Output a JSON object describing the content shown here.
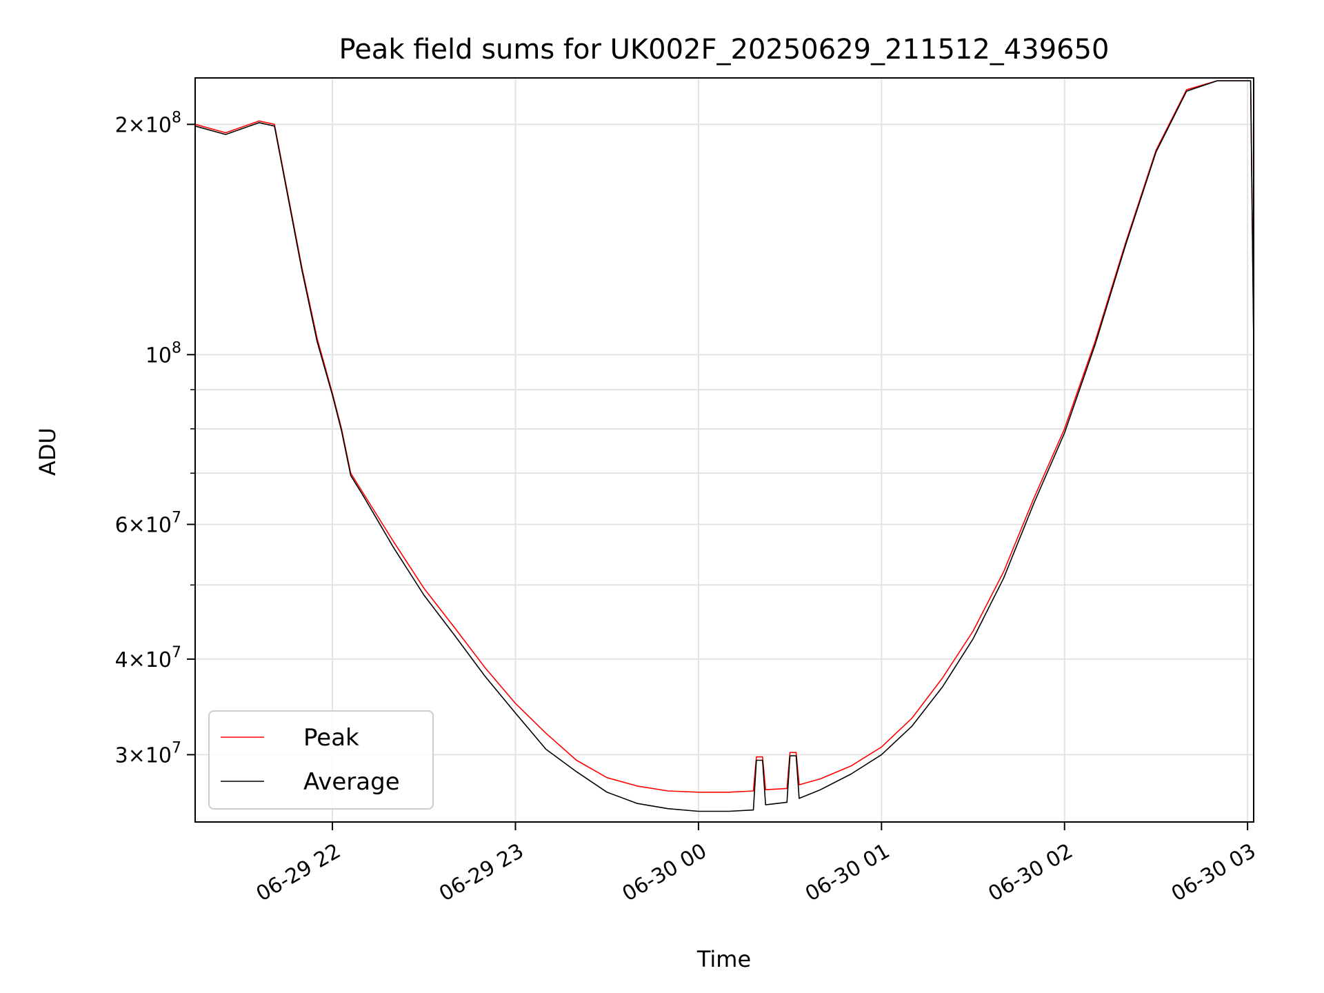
{
  "chart_data": {
    "type": "line",
    "title": "Peak field sums for UK002F_20250629_211512_439650",
    "xlabel": "Time",
    "ylabel": "ADU",
    "x_unit": "time of day (YYYY-MM-DD HH:MM)",
    "xlim": [
      "2025-06-29 21:15",
      "2025-06-30 03:02"
    ],
    "ylim": [
      24500000,
      230000000
    ],
    "yscale": "log",
    "grid": true,
    "legend": "lower left",
    "x_ticks": [
      "2025-06-29 22:00",
      "2025-06-29 23:00",
      "2025-06-30 00:00",
      "2025-06-30 01:00",
      "2025-06-30 02:00",
      "2025-06-30 03:00"
    ],
    "x_tick_labels": [
      "06-29 22",
      "06-29 23",
      "06-30 00",
      "06-30 01",
      "06-30 02",
      "06-30 03"
    ],
    "y_ticks": [
      30000000,
      40000000,
      60000000,
      100000000,
      200000000
    ],
    "y_tick_labels": [
      {
        "base": "3",
        "exp": "7"
      },
      {
        "base": "4",
        "exp": "7"
      },
      {
        "base": "6",
        "exp": "7"
      },
      {
        "base": "",
        "exp": "8"
      },
      {
        "base": "2",
        "exp": "8"
      }
    ],
    "series": [
      {
        "name": "Peak",
        "color": "#ff0000",
        "x": [
          "2025-06-29 21:15",
          "2025-06-29 21:25",
          "2025-06-29 21:36",
          "2025-06-29 21:41",
          "2025-06-29 21:50",
          "2025-06-29 21:55",
          "2025-06-29 22:00",
          "2025-06-29 22:03",
          "2025-06-29 22:06",
          "2025-06-29 22:10",
          "2025-06-29 22:20",
          "2025-06-29 22:30",
          "2025-06-29 22:40",
          "2025-06-29 22:50",
          "2025-06-29 23:00",
          "2025-06-29 23:10",
          "2025-06-29 23:20",
          "2025-06-29 23:30",
          "2025-06-29 23:40",
          "2025-06-29 23:50",
          "2025-06-30 00:00",
          "2025-06-30 00:10",
          "2025-06-30 00:18",
          "2025-06-30 00:19",
          "2025-06-30 00:21",
          "2025-06-30 00:22",
          "2025-06-30 00:29",
          "2025-06-30 00:30",
          "2025-06-30 00:32",
          "2025-06-30 00:33",
          "2025-06-30 00:40",
          "2025-06-30 00:50",
          "2025-06-30 01:00",
          "2025-06-30 01:10",
          "2025-06-30 01:20",
          "2025-06-30 01:30",
          "2025-06-30 01:40",
          "2025-06-30 01:50",
          "2025-06-30 02:00",
          "2025-06-30 02:10",
          "2025-06-30 02:20",
          "2025-06-30 02:30",
          "2025-06-30 02:40",
          "2025-06-30 02:50",
          "2025-06-30 03:00",
          "2025-06-30 03:01",
          "2025-06-30 03:02"
        ],
        "values": [
          200000000,
          195000000,
          202000000,
          200000000,
          130000000,
          105000000,
          89000000,
          80000000,
          70000000,
          66000000,
          57000000,
          49500000,
          44000000,
          39000000,
          35000000,
          32000000,
          29500000,
          28000000,
          27300000,
          26900000,
          26800000,
          26800000,
          26900000,
          29800000,
          29800000,
          27000000,
          27100000,
          30200000,
          30200000,
          27400000,
          27900000,
          29000000,
          30700000,
          33500000,
          37800000,
          43500000,
          52000000,
          65000000,
          80000000,
          104000000,
          140000000,
          185000000,
          222000000,
          228000000,
          228000000,
          228000000,
          104000000
        ]
      },
      {
        "name": "Average",
        "color": "#000000",
        "x": [
          "2025-06-29 21:15",
          "2025-06-29 21:25",
          "2025-06-29 21:36",
          "2025-06-29 21:41",
          "2025-06-29 21:50",
          "2025-06-29 21:55",
          "2025-06-29 22:00",
          "2025-06-29 22:03",
          "2025-06-29 22:06",
          "2025-06-29 22:10",
          "2025-06-29 22:20",
          "2025-06-29 22:30",
          "2025-06-29 22:40",
          "2025-06-29 22:50",
          "2025-06-29 23:00",
          "2025-06-29 23:10",
          "2025-06-29 23:20",
          "2025-06-29 23:30",
          "2025-06-29 23:40",
          "2025-06-29 23:50",
          "2025-06-30 00:00",
          "2025-06-30 00:10",
          "2025-06-30 00:18",
          "2025-06-30 00:19",
          "2025-06-30 00:21",
          "2025-06-30 00:22",
          "2025-06-30 00:29",
          "2025-06-30 00:30",
          "2025-06-30 00:32",
          "2025-06-30 00:33",
          "2025-06-30 00:40",
          "2025-06-30 00:50",
          "2025-06-30 01:00",
          "2025-06-30 01:10",
          "2025-06-30 01:20",
          "2025-06-30 01:30",
          "2025-06-30 01:40",
          "2025-06-30 01:50",
          "2025-06-30 02:00",
          "2025-06-30 02:10",
          "2025-06-30 02:20",
          "2025-06-30 02:30",
          "2025-06-30 02:40",
          "2025-06-30 02:50",
          "2025-06-30 03:00",
          "2025-06-30 03:01",
          "2025-06-30 03:02"
        ],
        "values": [
          199000000,
          194000000,
          201000000,
          199000000,
          129000000,
          104000000,
          88500000,
          79500000,
          69500000,
          65500000,
          56000000,
          48500000,
          43000000,
          38000000,
          34000000,
          30500000,
          28500000,
          26800000,
          25900000,
          25500000,
          25300000,
          25300000,
          25400000,
          29500000,
          29500000,
          25800000,
          26000000,
          29900000,
          29900000,
          26300000,
          27000000,
          28300000,
          30000000,
          32700000,
          36800000,
          42500000,
          51000000,
          64000000,
          79000000,
          103000000,
          139000000,
          184000000,
          221000000,
          228000000,
          228000000,
          228000000,
          104000000
        ]
      }
    ]
  }
}
